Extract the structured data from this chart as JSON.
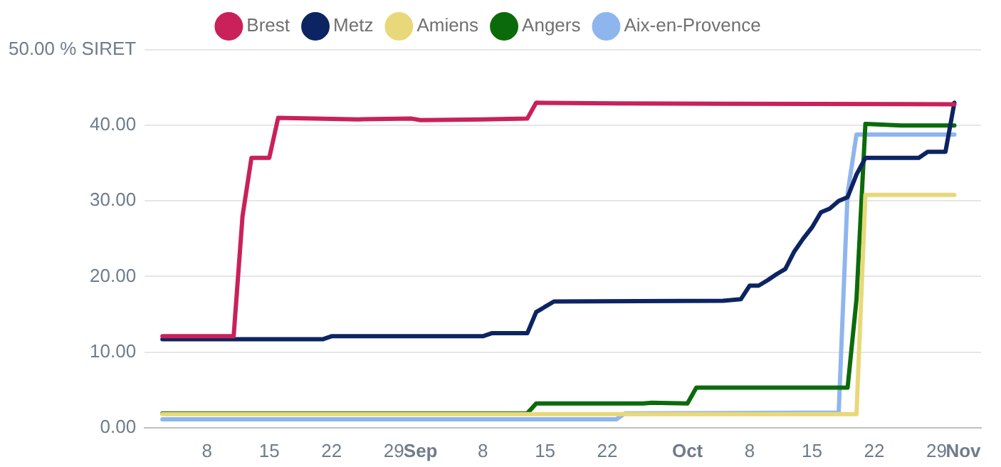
{
  "chart_data": {
    "type": "line",
    "legend": "top",
    "grid": "y",
    "marker": "none",
    "line_style": "solid",
    "xlim": [
      "--08-01",
      "--11-03"
    ],
    "xticks": [
      {
        "value": "--08-08",
        "label": "8"
      },
      {
        "value": "--08-15",
        "label": "15"
      },
      {
        "value": "--08-22",
        "label": "22"
      },
      {
        "value": "--08-29",
        "label": "29"
      },
      {
        "value": "--09-01",
        "label": "Sep"
      },
      {
        "value": "--09-08",
        "label": "8"
      },
      {
        "value": "--09-15",
        "label": "15"
      },
      {
        "value": "--09-22",
        "label": "22"
      },
      {
        "value": "--10-01",
        "label": "Oct"
      },
      {
        "value": "--10-08",
        "label": "8"
      },
      {
        "value": "--10-15",
        "label": "15"
      },
      {
        "value": "--10-22",
        "label": "22"
      },
      {
        "value": "--10-29",
        "label": "29"
      },
      {
        "value": "--11-01",
        "label": "Nov"
      }
    ],
    "ylim": [
      0,
      50
    ],
    "yticks": [
      {
        "value": 0,
        "label": "0.00"
      },
      {
        "value": 10,
        "label": "10.00"
      },
      {
        "value": 20,
        "label": "20.00"
      },
      {
        "value": 30,
        "label": "30.00"
      },
      {
        "value": 40,
        "label": "40.00"
      },
      {
        "value": 50,
        "label": "50.00 % SIRET"
      }
    ],
    "series": [
      {
        "name": "Brest",
        "color": "#c9215a",
        "x": [
          "--08-03",
          "--08-11",
          "--08-12",
          "--08-13",
          "--08-15",
          "--08-16",
          "--08-25",
          "--08-31",
          "--09-01",
          "--09-08",
          "--09-13",
          "--09-14",
          "--09-23",
          "--10-31"
        ],
        "values": [
          12.1,
          12.1,
          28,
          35.7,
          35.7,
          41,
          40.8,
          40.9,
          40.7,
          40.8,
          40.9,
          43,
          42.9,
          42.8
        ]
      },
      {
        "name": "Metz",
        "color": "#0c2461",
        "x": [
          "--08-03",
          "--08-21",
          "--08-22",
          "--09-08",
          "--09-09",
          "--09-13",
          "--09-14",
          "--09-15",
          "--09-16",
          "--10-05",
          "--10-07",
          "--10-08",
          "--10-09",
          "--10-10",
          "--10-11",
          "--10-12",
          "--10-13",
          "--10-14",
          "--10-15",
          "--10-16",
          "--10-17",
          "--10-18",
          "--10-19",
          "--10-20",
          "--10-21",
          "--10-27",
          "--10-28",
          "--10-30",
          "--10-31"
        ],
        "values": [
          11.7,
          11.7,
          12.1,
          12.1,
          12.5,
          12.5,
          15.3,
          16,
          16.7,
          16.8,
          17,
          18.8,
          18.8,
          19.5,
          20.3,
          21,
          23.3,
          25,
          26.5,
          28.5,
          29,
          30,
          30.5,
          33.5,
          35.7,
          35.7,
          36.5,
          36.5,
          43
        ]
      },
      {
        "name": "Amiens",
        "color": "#e8d87a",
        "x": [
          "--08-03",
          "--10-20",
          "--10-21",
          "--10-31"
        ],
        "values": [
          1.8,
          1.8,
          30.8,
          30.8
        ]
      },
      {
        "name": "Angers",
        "color": "#0b6b0b",
        "x": [
          "--08-03",
          "--09-13",
          "--09-14",
          "--09-26",
          "--09-27",
          "--10-01",
          "--10-02",
          "--10-19",
          "--10-20",
          "--10-21",
          "--10-25",
          "--10-31"
        ],
        "values": [
          1.9,
          1.9,
          3.2,
          3.2,
          3.3,
          3.2,
          5.3,
          5.3,
          17,
          40.2,
          40,
          40
        ]
      },
      {
        "name": "Aix-en-Provence",
        "color": "#8fb5ee",
        "x": [
          "--08-03",
          "--09-23",
          "--09-24",
          "--10-18",
          "--10-19",
          "--10-20",
          "--10-31"
        ],
        "values": [
          1.1,
          1.1,
          1.9,
          2,
          31,
          38.8,
          38.8
        ]
      }
    ]
  }
}
